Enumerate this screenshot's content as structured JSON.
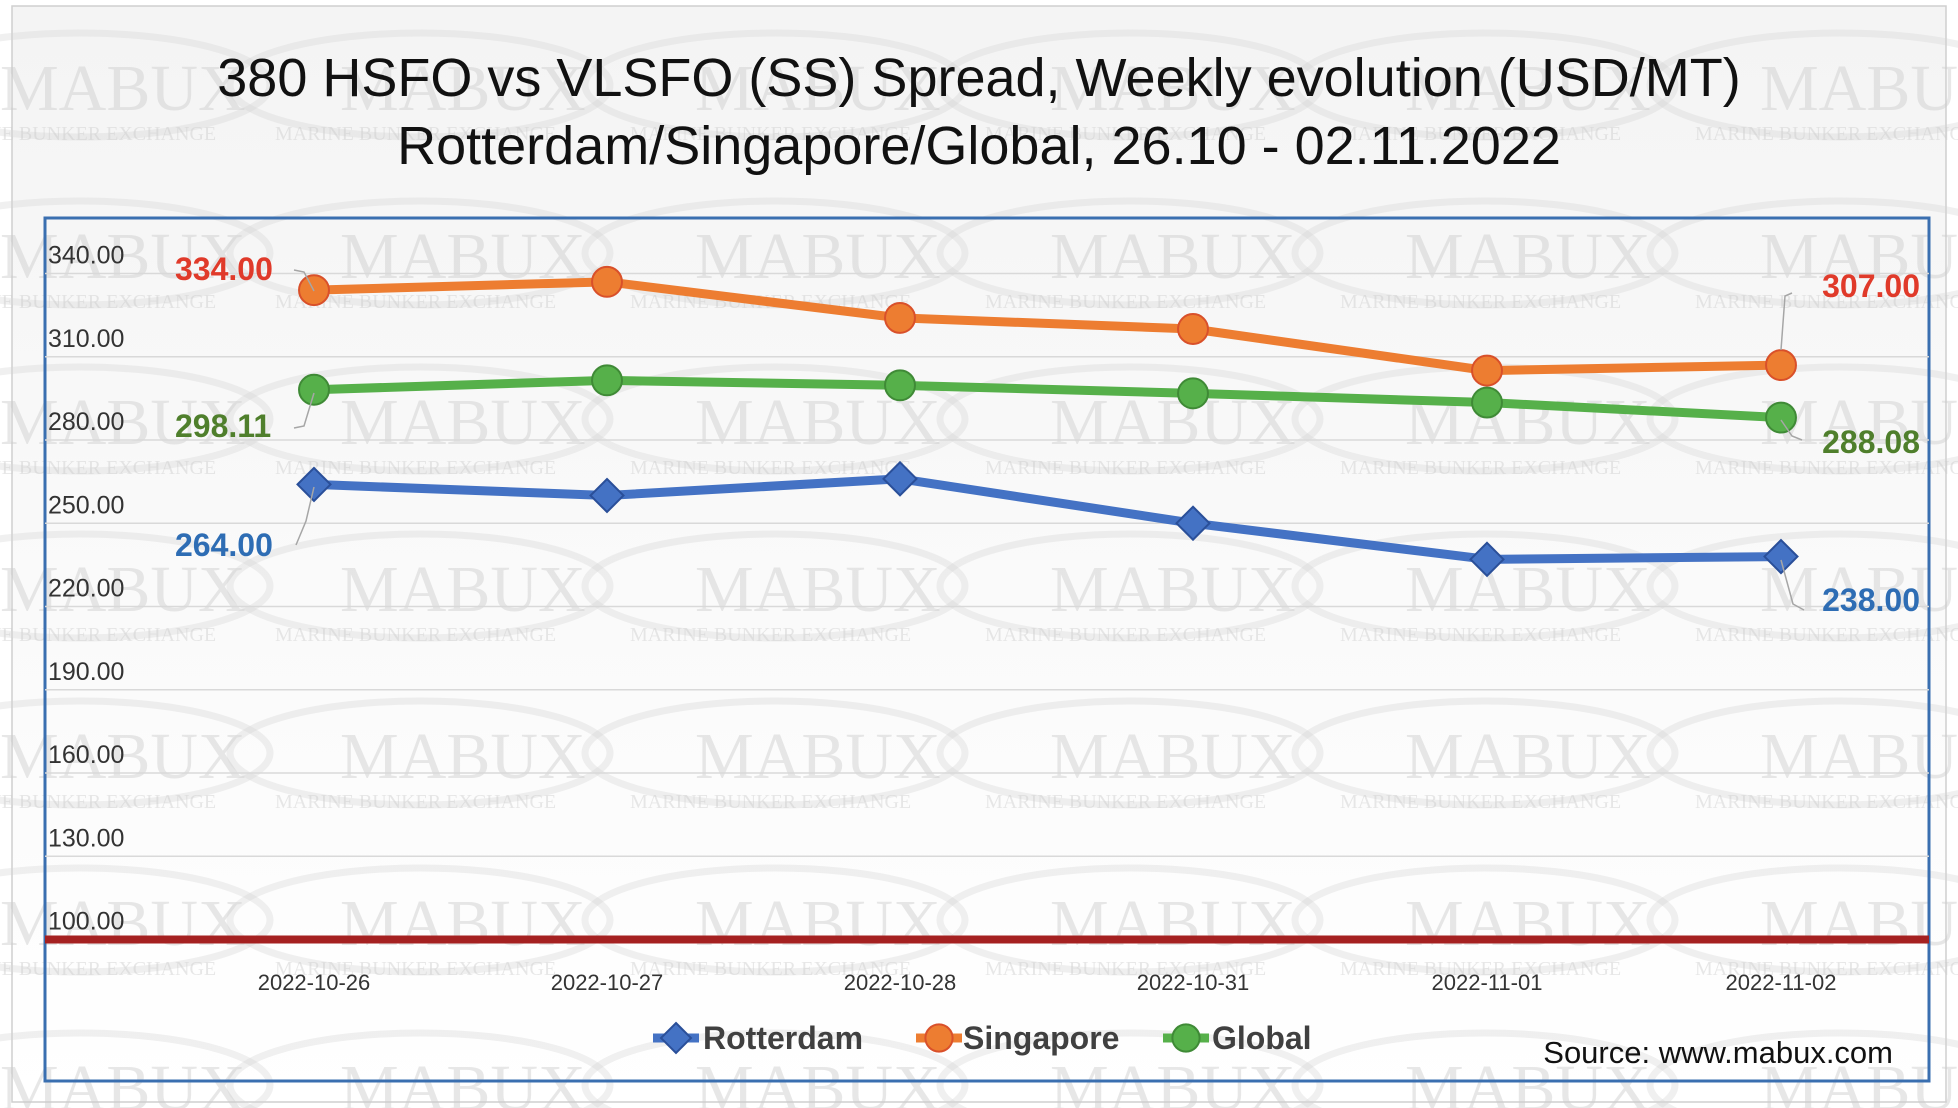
{
  "chart_data": {
    "type": "line",
    "title_line1": "380 HSFO vs VLSFO (SS) Spread, Weekly evolution (USD/MT)",
    "title_line2": "Rotterdam/Singapore/Global, 26.10 - 02.11.2022",
    "categories": [
      "2022-10-26",
      "2022-10-27",
      "2022-10-28",
      "2022-10-31",
      "2022-11-01",
      "2022-11-02"
    ],
    "y_ticks": [
      "100.00",
      "130.00",
      "160.00",
      "190.00",
      "220.00",
      "250.00",
      "280.00",
      "310.00",
      "340.00"
    ],
    "ylim": [
      100,
      340
    ],
    "grid": true,
    "legend_position": "bottom",
    "baseline_value": 100,
    "series": [
      {
        "name": "Rotterdam",
        "values": [
          264,
          260,
          266,
          250,
          237,
          238
        ],
        "color": "#4472c4",
        "marker": "diamond",
        "first_label": "264.00",
        "last_label": "238.00"
      },
      {
        "name": "Singapore",
        "values": [
          334,
          337,
          324,
          320,
          305,
          307
        ],
        "color": "#ed7d31",
        "marker": "circle",
        "first_label": "334.00",
        "last_label": "307.00"
      },
      {
        "name": "Global",
        "values": [
          298.11,
          301.5,
          299.7,
          296.8,
          293.5,
          288.08
        ],
        "color": "#56b04a",
        "marker": "circle",
        "first_label": "298.11",
        "last_label": "288.08"
      }
    ],
    "source": "Source: www.mabux.com",
    "watermark_text": "MABUX",
    "watermark_subtext": "MARINE BUNKER EXCHANGE"
  },
  "colors": {
    "frame_border": "#3a6fb0",
    "gridline": "#d9d9d9",
    "baseline": "#a52121",
    "label_rotterdam": "#2e6db4",
    "label_singapore": "#e03a2a",
    "label_global": "#4f7f2c"
  }
}
